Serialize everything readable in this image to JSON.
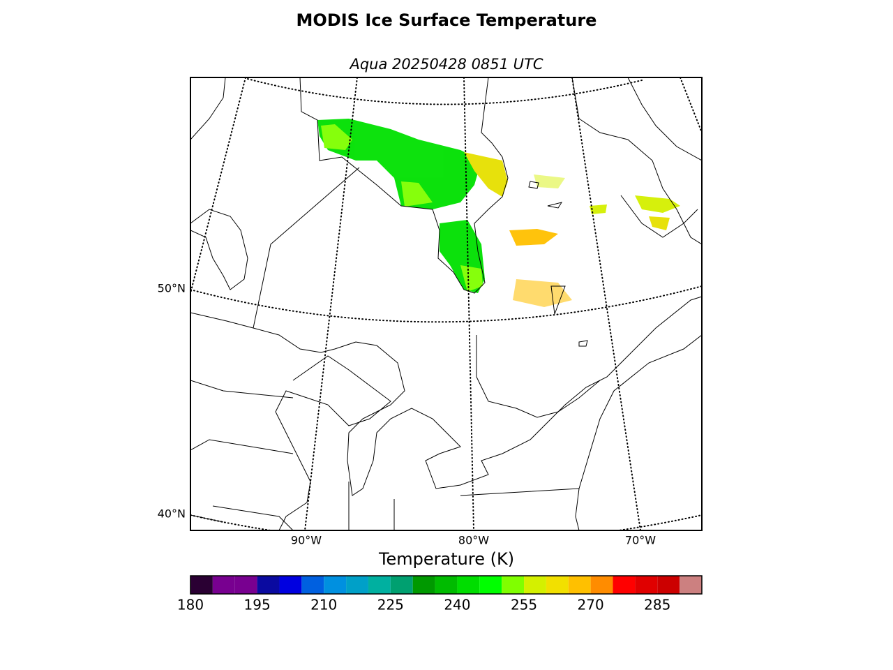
{
  "chart_data": {
    "type": "map",
    "title": "MODIS Ice Surface Temperature",
    "subtitle": "Aqua 20250428 0851 UTC",
    "lat_labels": [
      "50°N",
      "40°N"
    ],
    "lon_labels": [
      "90°W",
      "80°W",
      "70°W"
    ],
    "colorbar": {
      "label": "Temperature (K)",
      "bins": [
        180,
        185,
        190,
        195,
        200,
        205,
        210,
        215,
        220,
        225,
        230,
        235,
        240,
        245,
        250,
        255,
        260,
        265,
        270,
        275,
        280,
        285,
        290,
        295
      ],
      "colors": [
        "#2a0033",
        "#780090",
        "#780090",
        "#0a0aa0",
        "#0000e0",
        "#0060e0",
        "#0090e0",
        "#00a0c8",
        "#00b0a0",
        "#00a070",
        "#009900",
        "#00bb00",
        "#00dd00",
        "#00ff00",
        "#80ff00",
        "#d4f000",
        "#f2e000",
        "#ffc000",
        "#ff8c00",
        "#ff0000",
        "#e00000",
        "#cc0000",
        "#cc8080"
      ],
      "ticks": [
        180,
        195,
        210,
        225,
        240,
        255,
        270,
        285
      ]
    }
  }
}
